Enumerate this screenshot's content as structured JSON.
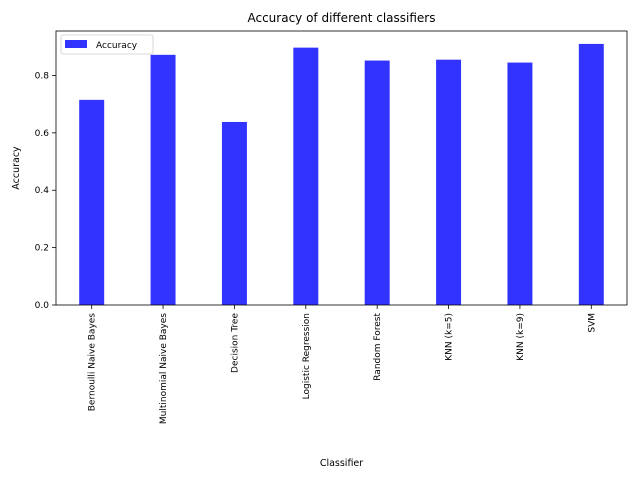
{
  "chart_data": {
    "type": "bar",
    "title": "Accuracy of different classifiers",
    "xlabel": "Classifier",
    "ylabel": "Accuracy",
    "categories": [
      "Bernoulli Naive Bayes",
      "Multinomial Naive Bayes",
      "Decision Tree",
      "Logistic Regression",
      "Random Forest",
      "KNN (k=5)",
      "KNN (k=9)",
      "SVM"
    ],
    "series": [
      {
        "name": "Accuracy",
        "values": [
          0.715,
          0.872,
          0.638,
          0.897,
          0.852,
          0.855,
          0.845,
          0.91
        ],
        "color": "#3333ff"
      }
    ],
    "ylim": [
      0,
      0.955
    ],
    "yticks": [
      "0.0",
      "0.2",
      "0.4",
      "0.6",
      "0.8"
    ],
    "legend": {
      "position": "top-left",
      "entries": [
        "Accuracy"
      ]
    },
    "grid": false
  }
}
